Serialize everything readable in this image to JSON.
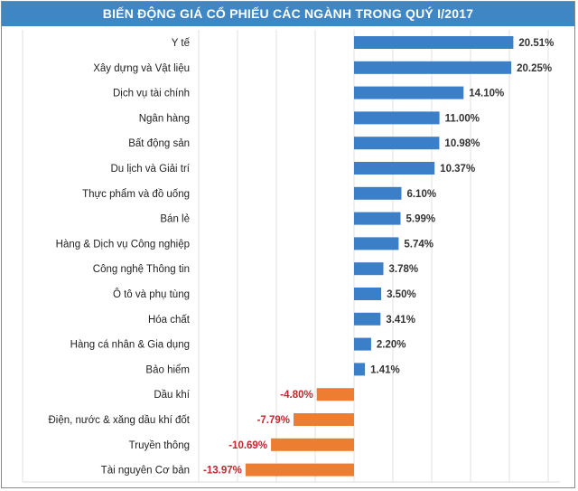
{
  "chart_data": {
    "type": "bar",
    "orientation": "horizontal",
    "title": "BIẾN ĐỘNG GIÁ CỔ PHIẾU CÁC NGÀNH TRONG QUÝ I/2017",
    "categories": [
      "Y tế",
      "Xây dựng và Vật liệu",
      "Dịch vụ tài chính",
      "Ngân hàng",
      "Bất động sản",
      "Du lịch và Giải trí",
      "Thực phẩm và đồ uống",
      "Bán lẻ",
      "Hàng & Dịch vụ Công nghiệp",
      "Công nghệ Thông tin",
      "Ô tô và phụ tùng",
      "Hóa chất",
      "Hàng cá nhân & Gia dụng",
      "Bảo hiểm",
      "Dầu khí",
      "Điện, nước & xăng dầu khí đốt",
      "Truyền thông",
      "Tài nguyên Cơ bản"
    ],
    "values": [
      20.51,
      20.25,
      14.1,
      11.0,
      10.98,
      10.37,
      6.1,
      5.99,
      5.74,
      3.78,
      3.5,
      3.41,
      2.2,
      1.41,
      -4.8,
      -7.79,
      -10.69,
      -13.97
    ],
    "data_labels": [
      "20.51%",
      "20.25%",
      "14.10%",
      "11.00%",
      "10.98%",
      "10.37%",
      "6.10%",
      "5.99%",
      "5.74%",
      "3.78%",
      "3.50%",
      "3.41%",
      "2.20%",
      "1.41%",
      "-4.80%",
      "-7.79%",
      "-10.69%",
      "-13.97%"
    ],
    "xlim": [
      -20,
      25
    ],
    "grid": true,
    "legend": "none",
    "colors": {
      "positive": "#3a7fc8",
      "negative": "#ed7d31",
      "negative_label": "#c0282d",
      "title_bg": "#3f86c4"
    }
  }
}
